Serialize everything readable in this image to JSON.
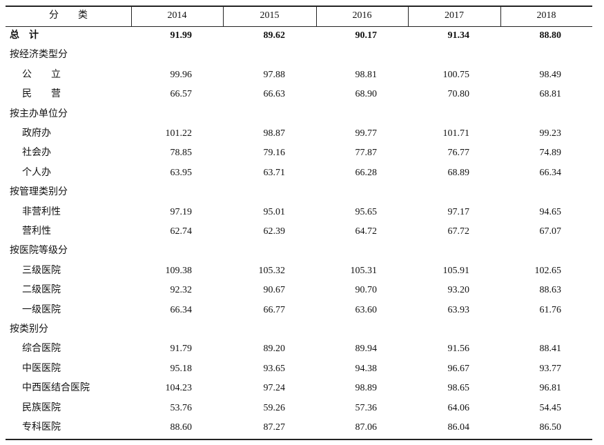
{
  "table": {
    "header": [
      "分　　类",
      "2014",
      "2015",
      "2016",
      "2017",
      "2018"
    ],
    "rows": [
      {
        "label": "总　计",
        "bold": true,
        "values": [
          "91.99",
          "89.62",
          "90.17",
          "91.34",
          "88.80"
        ]
      },
      {
        "label": "按经济类型分"
      },
      {
        "label": "公　　立",
        "values": [
          "99.96",
          "97.88",
          "98.81",
          "100.75",
          "98.49"
        ]
      },
      {
        "label": "民　　营",
        "values": [
          "66.57",
          "66.63",
          "68.90",
          "70.80",
          "68.81"
        ]
      },
      {
        "label": "按主办单位分"
      },
      {
        "label": "政府办",
        "values": [
          "101.22",
          "98.87",
          "99.77",
          "101.71",
          "99.23"
        ]
      },
      {
        "label": "社会办",
        "values": [
          "78.85",
          "79.16",
          "77.87",
          "76.77",
          "74.89"
        ]
      },
      {
        "label": "个人办",
        "values": [
          "63.95",
          "63.71",
          "66.28",
          "68.89",
          "66.34"
        ]
      },
      {
        "label": "按管理类别分"
      },
      {
        "label": "非营利性",
        "values": [
          "97.19",
          "95.01",
          "95.65",
          "97.17",
          "94.65"
        ]
      },
      {
        "label": "营利性",
        "values": [
          "62.74",
          "62.39",
          "64.72",
          "67.72",
          "67.07"
        ]
      },
      {
        "label": "按医院等级分"
      },
      {
        "label": "三级医院",
        "values": [
          "109.38",
          "105.32",
          "105.31",
          "105.91",
          "102.65"
        ]
      },
      {
        "label": "二级医院",
        "values": [
          "92.32",
          "90.67",
          "90.70",
          "93.20",
          "88.63"
        ]
      },
      {
        "label": "一级医院",
        "values": [
          "66.34",
          "66.77",
          "63.60",
          "63.93",
          "61.76"
        ]
      },
      {
        "label": "按类别分"
      },
      {
        "label": "综合医院",
        "values": [
          "91.79",
          "89.20",
          "89.94",
          "91.56",
          "88.41"
        ]
      },
      {
        "label": "中医医院",
        "values": [
          "95.18",
          "93.65",
          "94.38",
          "96.67",
          "93.77"
        ]
      },
      {
        "label": "中西医结合医院",
        "values": [
          "104.23",
          "97.24",
          "98.89",
          "98.65",
          "96.81"
        ]
      },
      {
        "label": "民族医院",
        "values": [
          "53.76",
          "59.26",
          "57.36",
          "64.06",
          "54.45"
        ]
      },
      {
        "label": "专科医院",
        "values": [
          "88.60",
          "87.27",
          "87.06",
          "86.04",
          "86.50"
        ]
      }
    ]
  }
}
